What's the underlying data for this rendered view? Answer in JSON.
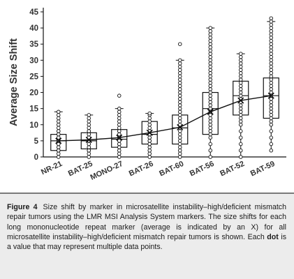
{
  "chart_data": {
    "type": "box",
    "categories": [
      "NR-21",
      "BAT-25",
      "MONO-27",
      "BAT-26",
      "BAT-60",
      "BAT-56",
      "BAT-52",
      "BAT-59"
    ],
    "ylabel": "Average Size Shift",
    "xlabel": "",
    "ylim": [
      0,
      45
    ],
    "yticks": [
      0,
      5,
      10,
      15,
      20,
      25,
      30,
      35,
      40,
      45
    ],
    "grid": false,
    "series": [
      {
        "stat": "box",
        "boxes": [
          {
            "q1": 2,
            "median": 5,
            "q3": 7,
            "min": 0,
            "max": 14
          },
          {
            "q1": 2.5,
            "median": 5,
            "q3": 7.5,
            "min": 0,
            "max": 13
          },
          {
            "q1": 3,
            "median": 5.5,
            "q3": 8.5,
            "min": 0,
            "max": 15
          },
          {
            "q1": 4,
            "median": 7,
            "q3": 11,
            "min": 0,
            "max": 13.5
          },
          {
            "q1": 4,
            "median": 9,
            "q3": 13,
            "min": 0,
            "max": 30
          },
          {
            "q1": 7,
            "median": 15,
            "q3": 20,
            "min": 0,
            "max": 40
          },
          {
            "q1": 13,
            "median": 19,
            "q3": 23.5,
            "min": 0,
            "max": 32
          },
          {
            "q1": 12,
            "median": 19,
            "q3": 24.5,
            "min": 2,
            "max": 42
          }
        ]
      },
      {
        "stat": "mean",
        "values": [
          5,
          5.3,
          6,
          7.5,
          9.2,
          14,
          17.5,
          19
        ]
      }
    ],
    "points": [
      [
        0,
        1,
        2,
        2,
        3,
        3,
        4,
        4,
        5,
        5,
        5,
        6,
        6,
        7,
        7,
        8,
        8,
        9,
        10,
        11,
        12,
        13,
        14
      ],
      [
        0,
        1,
        2,
        2,
        3,
        3,
        4,
        4,
        5,
        5,
        6,
        6,
        7,
        7,
        8,
        8,
        9,
        10,
        11,
        12,
        13
      ],
      [
        0,
        1,
        2,
        3,
        3,
        4,
        4,
        5,
        5,
        6,
        6,
        7,
        7,
        8,
        8,
        9,
        10,
        11,
        12,
        13,
        14,
        15,
        19
      ],
      [
        0,
        1,
        2,
        3,
        4,
        4,
        5,
        5,
        6,
        6,
        7,
        7,
        8,
        8,
        9,
        10,
        11,
        12,
        13,
        13.5
      ],
      [
        0,
        1,
        2,
        3,
        4,
        5,
        6,
        7,
        8,
        9,
        10,
        11,
        12,
        13,
        14,
        15,
        16,
        17,
        18,
        19,
        20,
        21,
        22,
        23,
        24,
        25,
        26,
        27,
        28,
        29,
        30,
        35
      ],
      [
        0,
        2,
        4,
        6,
        7,
        8,
        9,
        10,
        11,
        12,
        13,
        14,
        15,
        16,
        17,
        18,
        19,
        20,
        21,
        22,
        23,
        24,
        25,
        26,
        27,
        28,
        29,
        30,
        31,
        32,
        33,
        34,
        35,
        36,
        37,
        38,
        39,
        40
      ],
      [
        0,
        2,
        4,
        6,
        8,
        10,
        11,
        12,
        13,
        14,
        15,
        16,
        17,
        18,
        19,
        20,
        21,
        22,
        23,
        24,
        25,
        26,
        27,
        28,
        29,
        30,
        31,
        32
      ],
      [
        2,
        4,
        6,
        8,
        10,
        11,
        12,
        13,
        14,
        15,
        16,
        17,
        18,
        19,
        20,
        21,
        22,
        23,
        24,
        25,
        26,
        27,
        28,
        29,
        30,
        31,
        32,
        33,
        34,
        35,
        36,
        37,
        38,
        39,
        40,
        41,
        42,
        43
      ]
    ]
  },
  "caption": {
    "figure_label": "Figure 4",
    "text_before_bold": "Size shift by marker in microsatellite instability–high/deficient mismatch repair tumors using the LMR MSI Analysis System markers. The size shifts for each long mononucleotide repeat marker (average is indicated by an X) for all microsatellite instability–high/deficient mismatch repair tumors is shown. Each",
    "bold_word": "dot",
    "text_after_bold": "is a value that may represent multiple data points."
  },
  "colors": {
    "ink": "#111111",
    "caption_background": "#ececec",
    "caption_rule": "#7a7a7a"
  }
}
